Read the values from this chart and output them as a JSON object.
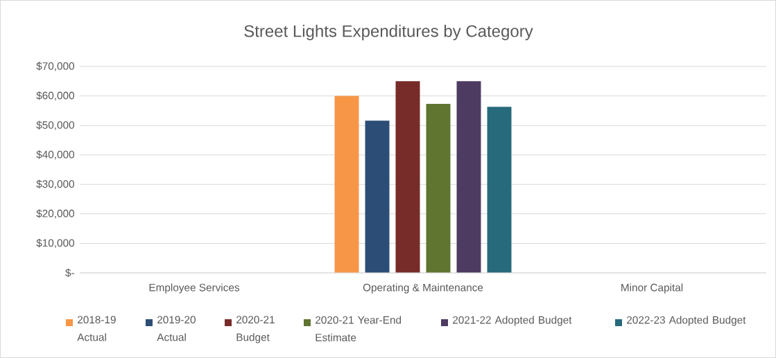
{
  "chart_data": {
    "type": "bar",
    "title": "Street Lights Expenditures by Category",
    "categories": [
      "Employee Services",
      "Operating & Maintenance",
      "Minor Capital"
    ],
    "series": [
      {
        "name": "2018-19 Actual",
        "color": "#f79646",
        "values": [
          0,
          60000,
          0
        ]
      },
      {
        "name": "2019-20 Actual",
        "color": "#2c4d75",
        "values": [
          0,
          51600,
          0
        ]
      },
      {
        "name": "2020-21 Budget",
        "color": "#772c2a",
        "values": [
          0,
          65000,
          0
        ]
      },
      {
        "name": "2020-21 Year-End Estimate",
        "color": "#5f7530",
        "values": [
          0,
          57300,
          0
        ]
      },
      {
        "name": "2021-22 Adopted Budget",
        "color": "#4d3b62",
        "values": [
          0,
          65000,
          0
        ]
      },
      {
        "name": "2022-23 Adopted Budget",
        "color": "#276a7c",
        "values": [
          0,
          56300,
          0
        ]
      }
    ],
    "ylim": [
      0,
      70000
    ],
    "yticks": [
      {
        "value": 0,
        "label": "$-"
      },
      {
        "value": 10000,
        "label": "$10,000"
      },
      {
        "value": 20000,
        "label": "$20,000"
      },
      {
        "value": 30000,
        "label": "$30,000"
      },
      {
        "value": 40000,
        "label": "$40,000"
      },
      {
        "value": 50000,
        "label": "$50,000"
      },
      {
        "value": 60000,
        "label": "$60,000"
      },
      {
        "value": 70000,
        "label": "$70,000"
      }
    ],
    "grid": "y",
    "legend": "bottom"
  }
}
